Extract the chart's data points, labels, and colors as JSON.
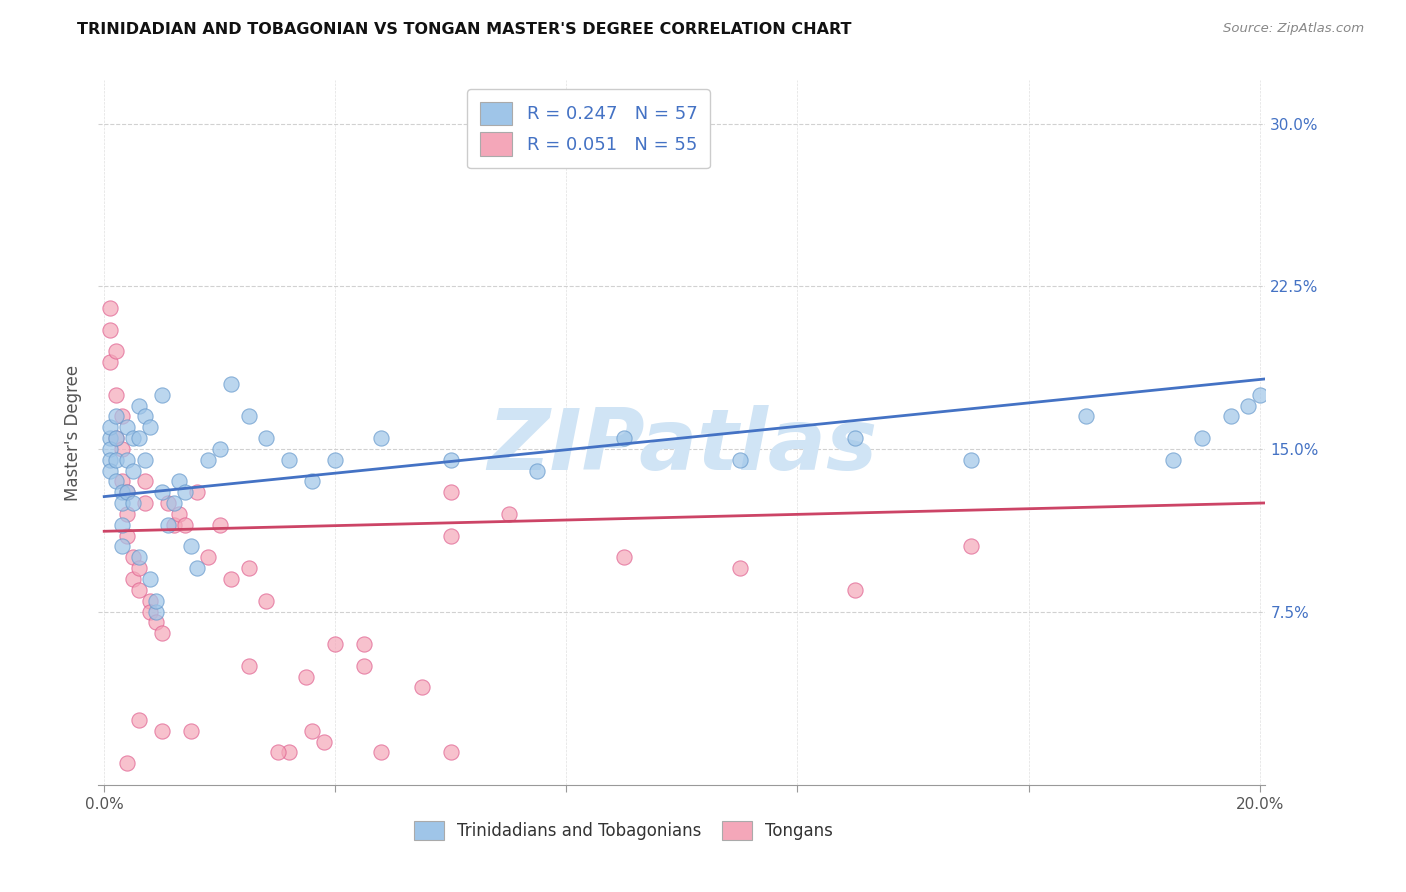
{
  "title": "TRINIDADIAN AND TOBAGONIAN VS TONGAN MASTER'S DEGREE CORRELATION CHART",
  "source": "Source: ZipAtlas.com",
  "ylabel": "Master's Degree",
  "y_ticks": [
    0.075,
    0.15,
    0.225,
    0.3
  ],
  "y_tick_labels": [
    "7.5%",
    "15.0%",
    "22.5%",
    "30.0%"
  ],
  "x_min": -0.001,
  "x_max": 0.201,
  "y_min": -0.005,
  "y_max": 0.32,
  "R_tri": "0.247",
  "N_tri": "57",
  "R_ton": "0.051",
  "N_ton": "55",
  "blue_fill": "#9fc5e8",
  "pink_fill": "#f4a7b9",
  "blue_line": "#4472c4",
  "pink_line": "#cc4466",
  "watermark": "ZIPatlas",
  "watermark_color": "#d0e4f5",
  "blue_intercept": 0.128,
  "blue_slope": 0.27,
  "pink_intercept": 0.112,
  "pink_slope": 0.065,
  "tri_x": [
    0.001,
    0.001,
    0.001,
    0.001,
    0.001,
    0.002,
    0.002,
    0.002,
    0.002,
    0.003,
    0.003,
    0.003,
    0.003,
    0.004,
    0.004,
    0.004,
    0.005,
    0.005,
    0.005,
    0.006,
    0.006,
    0.006,
    0.007,
    0.007,
    0.008,
    0.008,
    0.009,
    0.009,
    0.01,
    0.01,
    0.011,
    0.012,
    0.013,
    0.014,
    0.015,
    0.016,
    0.018,
    0.02,
    0.022,
    0.025,
    0.028,
    0.032,
    0.036,
    0.04,
    0.048,
    0.06,
    0.075,
    0.09,
    0.11,
    0.13,
    0.15,
    0.17,
    0.185,
    0.19,
    0.195,
    0.198,
    0.2
  ],
  "tri_y": [
    0.155,
    0.16,
    0.15,
    0.145,
    0.14,
    0.165,
    0.155,
    0.145,
    0.135,
    0.13,
    0.125,
    0.115,
    0.105,
    0.16,
    0.145,
    0.13,
    0.155,
    0.14,
    0.125,
    0.17,
    0.155,
    0.1,
    0.165,
    0.145,
    0.16,
    0.09,
    0.075,
    0.08,
    0.175,
    0.13,
    0.115,
    0.125,
    0.135,
    0.13,
    0.105,
    0.095,
    0.145,
    0.15,
    0.18,
    0.165,
    0.155,
    0.145,
    0.135,
    0.145,
    0.155,
    0.145,
    0.14,
    0.155,
    0.145,
    0.155,
    0.145,
    0.165,
    0.145,
    0.155,
    0.165,
    0.17,
    0.175
  ],
  "ton_x": [
    0.001,
    0.001,
    0.001,
    0.002,
    0.002,
    0.002,
    0.003,
    0.003,
    0.003,
    0.004,
    0.004,
    0.004,
    0.005,
    0.005,
    0.006,
    0.006,
    0.007,
    0.007,
    0.008,
    0.008,
    0.009,
    0.01,
    0.011,
    0.012,
    0.013,
    0.014,
    0.016,
    0.018,
    0.02,
    0.022,
    0.025,
    0.028,
    0.032,
    0.036,
    0.04,
    0.045,
    0.055,
    0.06,
    0.07,
    0.09,
    0.11,
    0.13,
    0.15,
    0.06,
    0.045,
    0.035,
    0.025,
    0.015,
    0.01,
    0.006,
    0.004,
    0.03,
    0.038,
    0.048,
    0.06
  ],
  "ton_y": [
    0.215,
    0.205,
    0.19,
    0.195,
    0.175,
    0.155,
    0.165,
    0.15,
    0.135,
    0.13,
    0.12,
    0.11,
    0.1,
    0.09,
    0.095,
    0.085,
    0.135,
    0.125,
    0.08,
    0.075,
    0.07,
    0.065,
    0.125,
    0.115,
    0.12,
    0.115,
    0.13,
    0.1,
    0.115,
    0.09,
    0.095,
    0.08,
    0.01,
    0.02,
    0.06,
    0.05,
    0.04,
    0.13,
    0.12,
    0.1,
    0.095,
    0.085,
    0.105,
    0.11,
    0.06,
    0.045,
    0.05,
    0.02,
    0.02,
    0.025,
    0.005,
    0.01,
    0.015,
    0.01,
    0.01
  ]
}
